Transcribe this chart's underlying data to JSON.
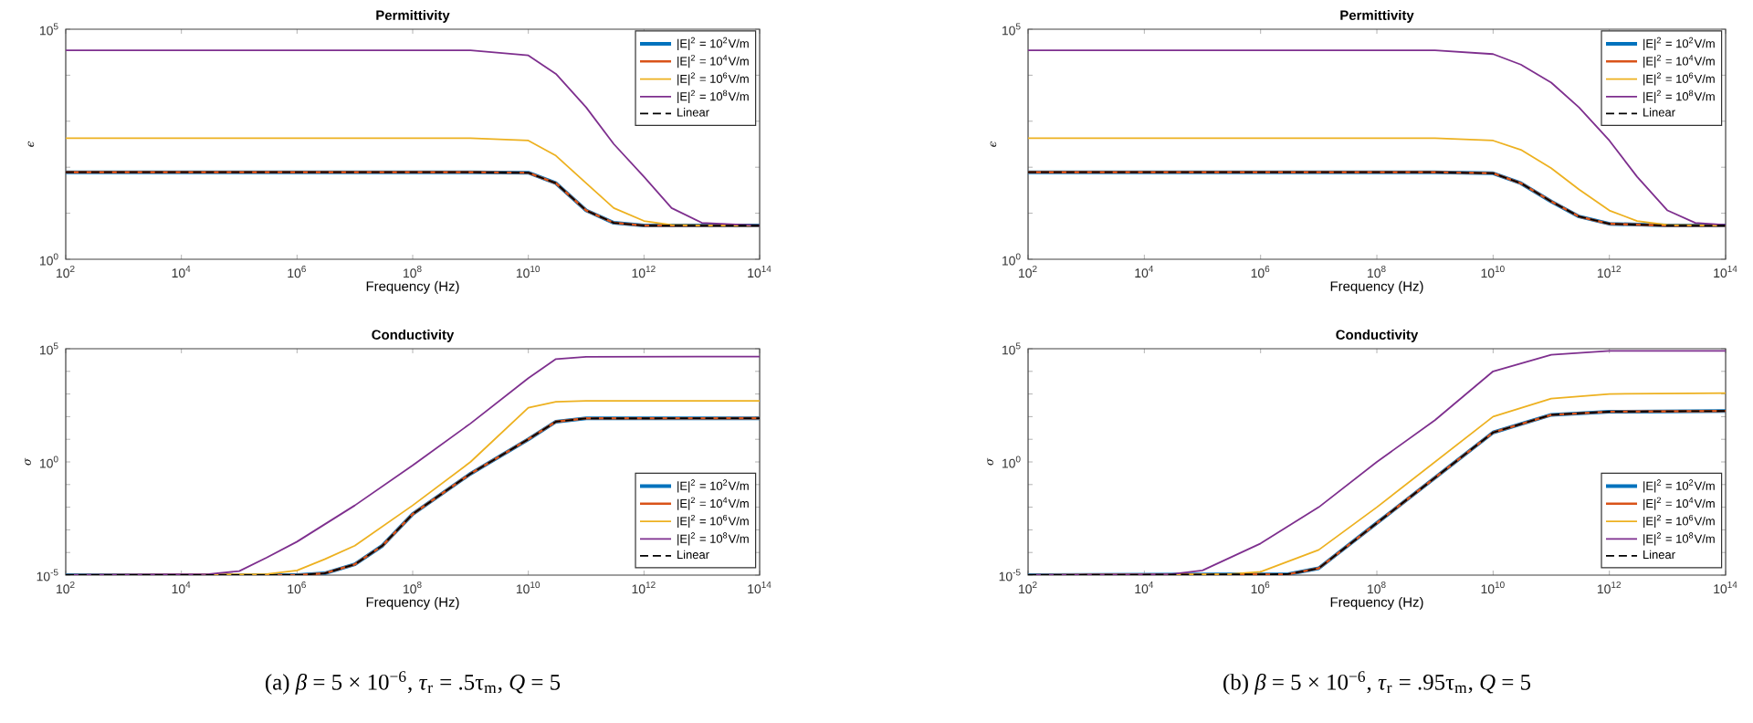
{
  "chart_data": [
    {
      "type": "line",
      "title": "Permittivity",
      "xlabel": "Frequency (Hz)",
      "ylabel": "ϵ",
      "log": "xy",
      "legend": "top right",
      "xlim": [
        100,
        100000000000000.0
      ],
      "ylim": [
        1,
        100000
      ],
      "xticks": [
        {
          "value": 100,
          "label": "10$^{2}$"
        },
        {
          "value": 10000,
          "label": "10$^{4}$"
        },
        {
          "value": 1000000.0,
          "label": "10$^{6}$"
        },
        {
          "value": 100000000.0,
          "label": "10$^{8}$"
        },
        {
          "value": 10000000000.0,
          "label": "10$^{10}$"
        },
        {
          "value": 1000000000000.0,
          "label": "10$^{12}$"
        },
        {
          "value": 100000000000000.0,
          "label": "10$^{14}$"
        }
      ],
      "yticks": [
        {
          "value": 1,
          "label": "10$^{0}$"
        },
        {
          "value": 10,
          "label": null
        },
        {
          "value": 100,
          "label": null
        },
        {
          "value": 1000,
          "label": null
        },
        {
          "value": 10000,
          "label": null
        },
        {
          "value": 100000,
          "label": "10$^{5}$"
        }
      ],
      "series": [
        {
          "name": "|E|$^{2}$ = 10$^{2}$V/m",
          "color": "#0072bd",
          "x": [
            100,
            1000000000.0,
            10000000000.0,
            30000000000.0,
            100000000000.0,
            300000000000.0,
            1000000000000.0,
            10000000000000.0,
            100000000000000.0
          ],
          "values": [
            78,
            78,
            76,
            45,
            11.5,
            6.2,
            5.4,
            5.4,
            5.4
          ]
        },
        {
          "name": "|E|$^{2}$ = 10$^{4}$V/m",
          "color": "#d95319",
          "x": [
            100,
            1000000000.0,
            10000000000.0,
            30000000000.0,
            100000000000.0,
            300000000000.0,
            1000000000000.0,
            10000000000000.0,
            100000000000000.0
          ],
          "values": [
            78,
            78,
            76,
            45,
            11.5,
            6.2,
            5.4,
            5.4,
            5.4
          ]
        },
        {
          "name": "|E|$^{2}$ = 10$^{6}$V/m",
          "color": "#edb120",
          "x": [
            100,
            1000000000.0,
            10000000000.0,
            30000000000.0,
            100000000000.0,
            300000000000.0,
            1000000000000.0,
            3000000000000.0,
            10000000000000.0,
            100000000000000.0
          ],
          "values": [
            427,
            427,
            380,
            178,
            45,
            13,
            6.8,
            5.6,
            5.4,
            5.4
          ]
        },
        {
          "name": "|E|$^{2}$ = 10$^{8}$V/m",
          "color": "#7e2f8e",
          "x": [
            100,
            1000000000.0,
            10000000000.0,
            30000000000.0,
            100000000000.0,
            300000000000.0,
            1000000000000.0,
            3000000000000.0,
            10000000000000.0,
            100000000000000.0
          ],
          "values": [
            34700,
            34700,
            27000,
            10700,
            2000,
            320,
            62,
            13,
            6.2,
            5.4
          ]
        },
        {
          "name": "Linear",
          "color": "#000000",
          "line_style": "dashed",
          "x": [
            100,
            1000000000.0,
            10000000000.0,
            30000000000.0,
            100000000000.0,
            300000000000.0,
            1000000000000.0,
            10000000000000.0,
            100000000000000.0
          ],
          "values": [
            78,
            78,
            76,
            45,
            11.5,
            6.2,
            5.4,
            5.4,
            5.4
          ]
        }
      ]
    },
    {
      "type": "line",
      "title": "Conductivity",
      "xlabel": "Frequency (Hz)",
      "ylabel": "σ",
      "log": "xy",
      "legend": "bottom right",
      "xlim": [
        100,
        100000000000000.0
      ],
      "ylim": [
        1e-05,
        100000
      ],
      "xticks": [
        {
          "value": 100,
          "label": "10$^{2}$"
        },
        {
          "value": 10000,
          "label": "10$^{4}$"
        },
        {
          "value": 1000000.0,
          "label": "10$^{6}$"
        },
        {
          "value": 100000000.0,
          "label": "10$^{8}$"
        },
        {
          "value": 10000000000.0,
          "label": "10$^{10}$"
        },
        {
          "value": 1000000000000.0,
          "label": "10$^{12}$"
        },
        {
          "value": 100000000000000.0,
          "label": "10$^{14}$"
        }
      ],
      "yticks": [
        {
          "value": 1e-05,
          "label": "10$^{-5}$"
        },
        {
          "value": 0.0001,
          "label": null
        },
        {
          "value": 0.001,
          "label": null
        },
        {
          "value": 0.01,
          "label": null
        },
        {
          "value": 0.1,
          "label": null
        },
        {
          "value": 1,
          "label": "10$^{0}$"
        },
        {
          "value": 10,
          "label": null
        },
        {
          "value": 100,
          "label": null
        },
        {
          "value": 1000,
          "label": null
        },
        {
          "value": 10000,
          "label": null
        },
        {
          "value": 100000,
          "label": "10$^{5}$"
        }
      ],
      "annotations": [
        "(a) *β* = 5 × 10$^{−6}$, *τ*$_{r}$ = .5τ$_{m}$, *Q* = 5"
      ],
      "series": [
        {
          "name": "|E|$^{2}$ = 10$^{2}$V/m",
          "color": "#0072bd",
          "x": [
            100,
            1000000.0,
            3000000.0,
            10000000.0,
            30000000.0,
            100000000.0,
            1000000000.0,
            10000000000.0,
            30000000000.0,
            100000000000.0,
            100000000000000.0
          ],
          "values": [
            1e-05,
            1e-05,
            1.2e-05,
            3e-05,
            0.0002,
            0.005,
            0.3,
            10,
            60,
            84,
            85
          ]
        },
        {
          "name": "|E|$^{2}$ = 10$^{4}$V/m",
          "color": "#d95319",
          "x": [
            100,
            1000000.0,
            3000000.0,
            10000000.0,
            30000000.0,
            100000000.0,
            1000000000.0,
            10000000000.0,
            30000000000.0,
            100000000000.0,
            100000000000000.0
          ],
          "values": [
            1e-05,
            1e-05,
            1.2e-05,
            3e-05,
            0.0002,
            0.005,
            0.3,
            10,
            60,
            84,
            85
          ]
        },
        {
          "name": "|E|$^{2}$ = 10$^{6}$V/m",
          "color": "#edb120",
          "x": [
            100,
            300000.0,
            1000000.0,
            3000000.0,
            10000000.0,
            100000000.0,
            1000000000.0,
            10000000000.0,
            30000000000.0,
            100000000000.0,
            100000000000000.0
          ],
          "values": [
            1e-05,
            1.1e-05,
            1.6e-05,
            5e-05,
            0.0002,
            0.012,
            1,
            250,
            450,
            500,
            500
          ]
        },
        {
          "name": "|E|$^{2}$ = 10$^{8}$V/m",
          "color": "#7e2f8e",
          "x": [
            100,
            30000,
            100000.0,
            300000.0,
            1000000.0,
            10000000.0,
            100000000.0,
            1000000000.0,
            10000000000.0,
            30000000000.0,
            100000000000.0,
            100000000000000.0
          ],
          "values": [
            1e-05,
            1.1e-05,
            1.5e-05,
            6e-05,
            0.0003,
            0.012,
            0.7,
            50,
            5000,
            35000,
            44000,
            45000
          ]
        },
        {
          "name": "Linear",
          "color": "#000000",
          "line_style": "dashed",
          "x": [
            100,
            1000000.0,
            3000000.0,
            10000000.0,
            30000000.0,
            100000000.0,
            1000000000.0,
            10000000000.0,
            30000000000.0,
            100000000000.0,
            100000000000000.0
          ],
          "values": [
            1e-05,
            1e-05,
            1.2e-05,
            3e-05,
            0.0002,
            0.005,
            0.3,
            10,
            60,
            84,
            85
          ]
        }
      ]
    },
    {
      "type": "line",
      "title": "Permittivity",
      "xlabel": "Frequency (Hz)",
      "ylabel": "ϵ",
      "log": "xy",
      "legend": "top right",
      "xlim": [
        100,
        100000000000000.0
      ],
      "ylim": [
        1,
        100000
      ],
      "xticks": [
        {
          "value": 100,
          "label": "10$^{2}$"
        },
        {
          "value": 10000,
          "label": "10$^{4}$"
        },
        {
          "value": 1000000.0,
          "label": "10$^{6}$"
        },
        {
          "value": 100000000.0,
          "label": "10$^{8}$"
        },
        {
          "value": 10000000000.0,
          "label": "10$^{10}$"
        },
        {
          "value": 1000000000000.0,
          "label": "10$^{12}$"
        },
        {
          "value": 100000000000000.0,
          "label": "10$^{14}$"
        }
      ],
      "yticks": [
        {
          "value": 1,
          "label": "10$^{0}$"
        },
        {
          "value": 10,
          "label": null
        },
        {
          "value": 100,
          "label": null
        },
        {
          "value": 1000,
          "label": null
        },
        {
          "value": 10000,
          "label": null
        },
        {
          "value": 100000,
          "label": "10$^{5}$"
        }
      ],
      "series": [
        {
          "name": "|E|$^{2}$ = 10$^{2}$V/m",
          "color": "#0072bd",
          "x": [
            100,
            1000000000.0,
            10000000000.0,
            30000000000.0,
            100000000000.0,
            300000000000.0,
            1000000000000.0,
            10000000000000.0,
            100000000000000.0
          ],
          "values": [
            78,
            78,
            74,
            45,
            18,
            8.5,
            5.9,
            5.4,
            5.4
          ]
        },
        {
          "name": "|E|$^{2}$ = 10$^{4}$V/m",
          "color": "#d95319",
          "x": [
            100,
            1000000000.0,
            10000000000.0,
            30000000000.0,
            100000000000.0,
            300000000000.0,
            1000000000000.0,
            10000000000000.0,
            100000000000000.0
          ],
          "values": [
            78,
            78,
            74,
            45,
            18,
            8.5,
            5.9,
            5.4,
            5.4
          ]
        },
        {
          "name": "|E|$^{2}$ = 10$^{6}$V/m",
          "color": "#edb120",
          "x": [
            100,
            1000000000.0,
            10000000000.0,
            30000000000.0,
            100000000000.0,
            300000000000.0,
            1000000000000.0,
            3000000000000.0,
            10000000000000.0,
            100000000000000.0
          ],
          "values": [
            427,
            427,
            380,
            240,
            95,
            33,
            11.5,
            6.8,
            5.6,
            5.4
          ]
        },
        {
          "name": "|E|$^{2}$ = 10$^{8}$V/m",
          "color": "#7e2f8e",
          "x": [
            100,
            1000000000.0,
            10000000000.0,
            30000000000.0,
            100000000000.0,
            300000000000.0,
            1000000000000.0,
            3000000000000.0,
            10000000000000.0,
            30000000000000.0,
            100000000000000.0
          ],
          "values": [
            34700,
            34700,
            28800,
            17000,
            6900,
            2000,
            380,
            62,
            11.5,
            6.2,
            5.6
          ]
        },
        {
          "name": "Linear",
          "color": "#000000",
          "line_style": "dashed",
          "x": [
            100,
            1000000000.0,
            10000000000.0,
            30000000000.0,
            100000000000.0,
            300000000000.0,
            1000000000000.0,
            10000000000000.0,
            100000000000000.0
          ],
          "values": [
            78,
            78,
            74,
            45,
            18,
            8.5,
            5.9,
            5.4,
            5.4
          ]
        }
      ]
    },
    {
      "type": "line",
      "title": "Conductivity",
      "xlabel": "Frequency (Hz)",
      "ylabel": "σ",
      "log": "xy",
      "legend": "bottom right",
      "xlim": [
        100,
        100000000000000.0
      ],
      "ylim": [
        1e-05,
        100000
      ],
      "xticks": [
        {
          "value": 100,
          "label": "10$^{2}$"
        },
        {
          "value": 10000,
          "label": "10$^{4}$"
        },
        {
          "value": 1000000.0,
          "label": "10$^{6}$"
        },
        {
          "value": 100000000.0,
          "label": "10$^{8}$"
        },
        {
          "value": 10000000000.0,
          "label": "10$^{10}$"
        },
        {
          "value": 1000000000000.0,
          "label": "10$^{12}$"
        },
        {
          "value": 100000000000000.0,
          "label": "10$^{14}$"
        }
      ],
      "yticks": [
        {
          "value": 1e-05,
          "label": "10$^{-5}$"
        },
        {
          "value": 0.0001,
          "label": null
        },
        {
          "value": 0.001,
          "label": null
        },
        {
          "value": 0.01,
          "label": null
        },
        {
          "value": 0.1,
          "label": null
        },
        {
          "value": 1,
          "label": "10$^{0}$"
        },
        {
          "value": 10,
          "label": null
        },
        {
          "value": 100,
          "label": null
        },
        {
          "value": 1000,
          "label": null
        },
        {
          "value": 10000,
          "label": null
        },
        {
          "value": 100000,
          "label": "10$^{5}$"
        }
      ],
      "annotations": [
        "(b) *β* = 5 × 10$^{−6}$, *τ*$_{r}$ = .95τ$_{m}$, *Q* = 5"
      ],
      "series": [
        {
          "name": "|E|$^{2}$ = 10$^{2}$V/m",
          "color": "#0072bd",
          "x": [
            100,
            3000000.0,
            10000000.0,
            100000000.0,
            1000000000.0,
            10000000000.0,
            100000000000.0,
            1000000000000.0,
            100000000000000.0
          ],
          "values": [
            1e-05,
            1.1e-05,
            2e-05,
            0.002,
            0.2,
            20,
            120,
            165,
            178
          ]
        },
        {
          "name": "|E|$^{2}$ = 10$^{4}$V/m",
          "color": "#d95319",
          "x": [
            100,
            3000000.0,
            10000000.0,
            100000000.0,
            1000000000.0,
            10000000000.0,
            100000000000.0,
            1000000000000.0,
            100000000000000.0
          ],
          "values": [
            1e-05,
            1.1e-05,
            2e-05,
            0.002,
            0.2,
            20,
            120,
            165,
            178
          ]
        },
        {
          "name": "|E|$^{2}$ = 10$^{6}$V/m",
          "color": "#edb120",
          "x": [
            100,
            300000.0,
            1000000.0,
            10000000.0,
            100000000.0,
            1000000000.0,
            10000000000.0,
            100000000000.0,
            1000000000000.0,
            100000000000000.0
          ],
          "values": [
            1e-05,
            1.1e-05,
            1.4e-05,
            0.00013,
            0.01,
            1,
            100,
            630,
            1000,
            1100
          ]
        },
        {
          "name": "|E|$^{2}$ = 10$^{8}$V/m",
          "color": "#7e2f8e",
          "x": [
            100,
            30000,
            100000.0,
            1000000.0,
            10000000.0,
            100000000.0,
            1000000000.0,
            10000000000.0,
            100000000000.0,
            1000000000000.0,
            100000000000000.0
          ],
          "values": [
            1e-05,
            1.1e-05,
            1.6e-05,
            0.00025,
            0.01,
            1,
            70,
            10000,
            54000,
            80000,
            80000
          ]
        },
        {
          "name": "Linear",
          "color": "#000000",
          "line_style": "dashed",
          "x": [
            100,
            3000000.0,
            10000000.0,
            100000000.0,
            1000000000.0,
            10000000000.0,
            100000000000.0,
            1000000000000.0,
            100000000000000.0
          ],
          "values": [
            1e-05,
            1.1e-05,
            2e-05,
            0.002,
            0.2,
            20,
            120,
            165,
            178
          ]
        }
      ]
    }
  ]
}
